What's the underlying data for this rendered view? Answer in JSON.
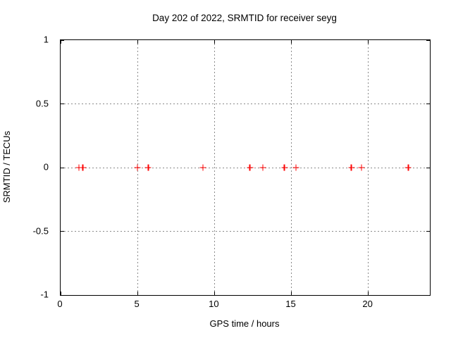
{
  "window": {
    "kind": "gnuplot-chart",
    "background": "#ffffff"
  },
  "colors": {
    "marker": "#ff0000",
    "grid": "#8a8a8a",
    "axis": "#000000",
    "text": "#000000"
  },
  "chart_data": {
    "type": "scatter",
    "marker_style": "plus",
    "title": "Day 202 of 2022, SRMTID for receiver seyg",
    "xlabel": "GPS time / hours",
    "ylabel": "SRMTID / TECUs",
    "xlim": [
      0,
      24
    ],
    "ylim": [
      -1,
      1
    ],
    "xticks": [
      0,
      5,
      10,
      15,
      20
    ],
    "yticks": [
      1,
      0.5,
      0,
      -0.5,
      -1
    ],
    "grid_x": [
      5,
      10,
      15,
      20
    ],
    "grid_y": [
      0.5,
      0,
      -0.5
    ],
    "grid": true,
    "legend": "none",
    "series": [
      {
        "name": "SRMTID",
        "x": [
          1.2,
          1.45,
          5.0,
          5.7,
          9.25,
          12.3,
          13.15,
          14.55,
          15.3,
          18.9,
          19.55,
          22.6
        ],
        "y": [
          0,
          0,
          0,
          0,
          0,
          0,
          0,
          0,
          0,
          0,
          0,
          0
        ]
      }
    ]
  }
}
